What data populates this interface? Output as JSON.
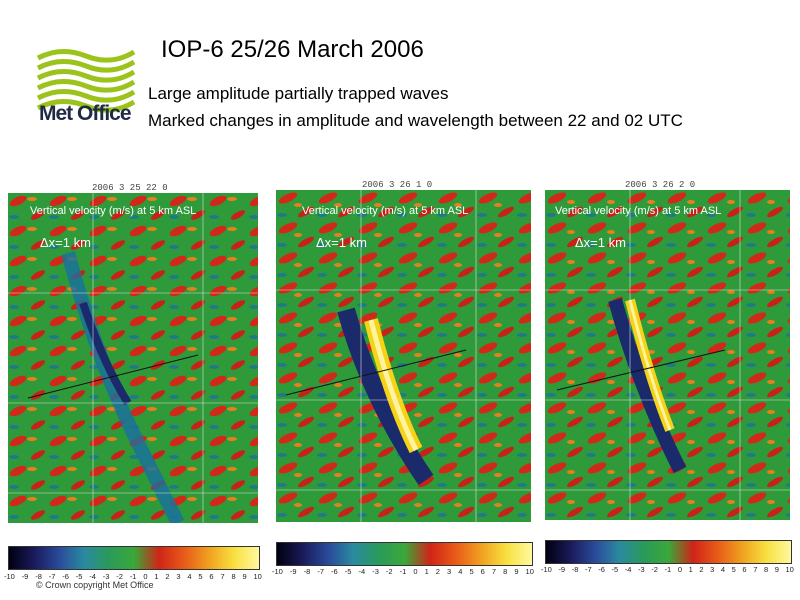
{
  "logo": {
    "text": "Met Office",
    "icon": "met-office-wave-logo",
    "color": "#9bc31c"
  },
  "title": "IOP-6 25/26 March 2006",
  "subtitles": [
    "Large amplitude partially trapped waves",
    "Marked changes in amplitude and wavelength between 22 and 02 UTC"
  ],
  "panels": [
    {
      "stamp": "2006  3 25  22  0",
      "caption": "Vertical velocity (m/s) at 5 km ASL",
      "dx": "Δx=1 km"
    },
    {
      "stamp": "2006  3 26  1  0",
      "caption": "Vertical velocity (m/s) at 5 km ASL",
      "dx": "Δx=1 km"
    },
    {
      "stamp": "2006  3 26  2  0",
      "caption": "Vertical velocity (m/s) at 5 km ASL",
      "dx": "Δx=1 km"
    }
  ],
  "colorbar_ticks": [
    "-10",
    "-9",
    "-8",
    "-7",
    "-6",
    "-5",
    "-4",
    "-3",
    "-2",
    "-1",
    "0",
    "1",
    "2",
    "3",
    "4",
    "5",
    "6",
    "7",
    "8",
    "9",
    "10"
  ],
  "copyright": "© Crown copyright  Met Office"
}
